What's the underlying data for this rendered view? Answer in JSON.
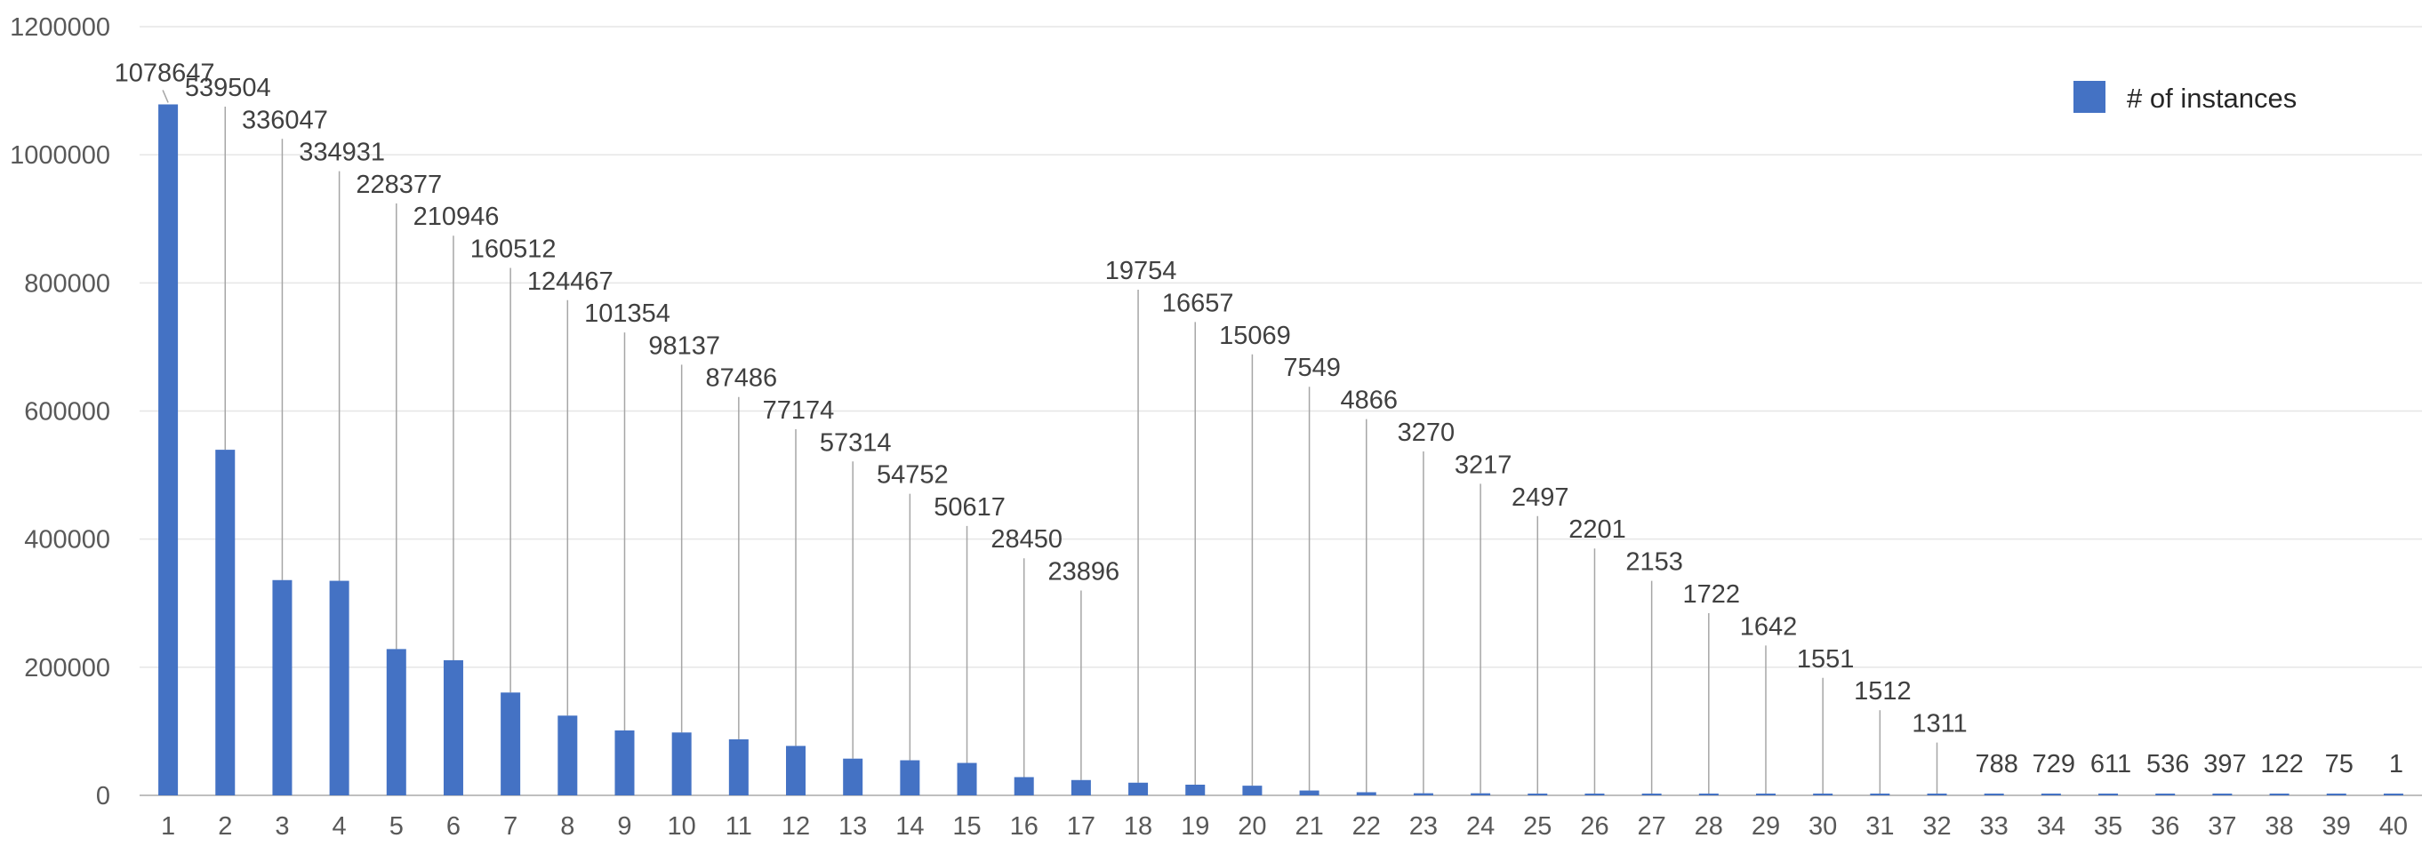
{
  "chart_data": {
    "type": "bar",
    "categories": [
      "1",
      "2",
      "3",
      "4",
      "5",
      "6",
      "7",
      "8",
      "9",
      "10",
      "11",
      "12",
      "13",
      "14",
      "15",
      "16",
      "17",
      "18",
      "19",
      "20",
      "21",
      "22",
      "23",
      "24",
      "25",
      "26",
      "27",
      "28",
      "29",
      "30",
      "31",
      "32",
      "33",
      "34",
      "35",
      "36",
      "37",
      "38",
      "39",
      "40"
    ],
    "series": [
      {
        "name": "# of instances",
        "color": "#4472c4",
        "values": [
          1078647,
          539504,
          336047,
          334931,
          228377,
          210946,
          160512,
          124467,
          101354,
          98137,
          87486,
          77174,
          57314,
          54752,
          50617,
          28450,
          23896,
          19754,
          16657,
          15069,
          7549,
          4866,
          3270,
          3217,
          2497,
          2201,
          2153,
          1722,
          1642,
          1551,
          1512,
          1311,
          788,
          729,
          611,
          536,
          397,
          122,
          75,
          1
        ]
      }
    ],
    "data_labels": [
      "1078647",
      "539504",
      "336047",
      "334931",
      "228377",
      "210946",
      "160512",
      "124467",
      "101354",
      "98137",
      "87486",
      "77174",
      "57314",
      "54752",
      "50617",
      "28450",
      "23896",
      "19754",
      "16657",
      "15069",
      "7549",
      "4866",
      "3270",
      "3217",
      "2497",
      "2201",
      "2153",
      "1722",
      "1642",
      "1551",
      "1512",
      "1311",
      "788",
      "729",
      "611",
      "536",
      "397",
      "122",
      "75",
      "1"
    ],
    "y_ticks": [
      "0",
      "200000",
      "400000",
      "600000",
      "800000",
      "1000000",
      "1200000"
    ],
    "ylim": [
      0,
      1200000
    ],
    "grid": true,
    "legend": "top-right"
  }
}
